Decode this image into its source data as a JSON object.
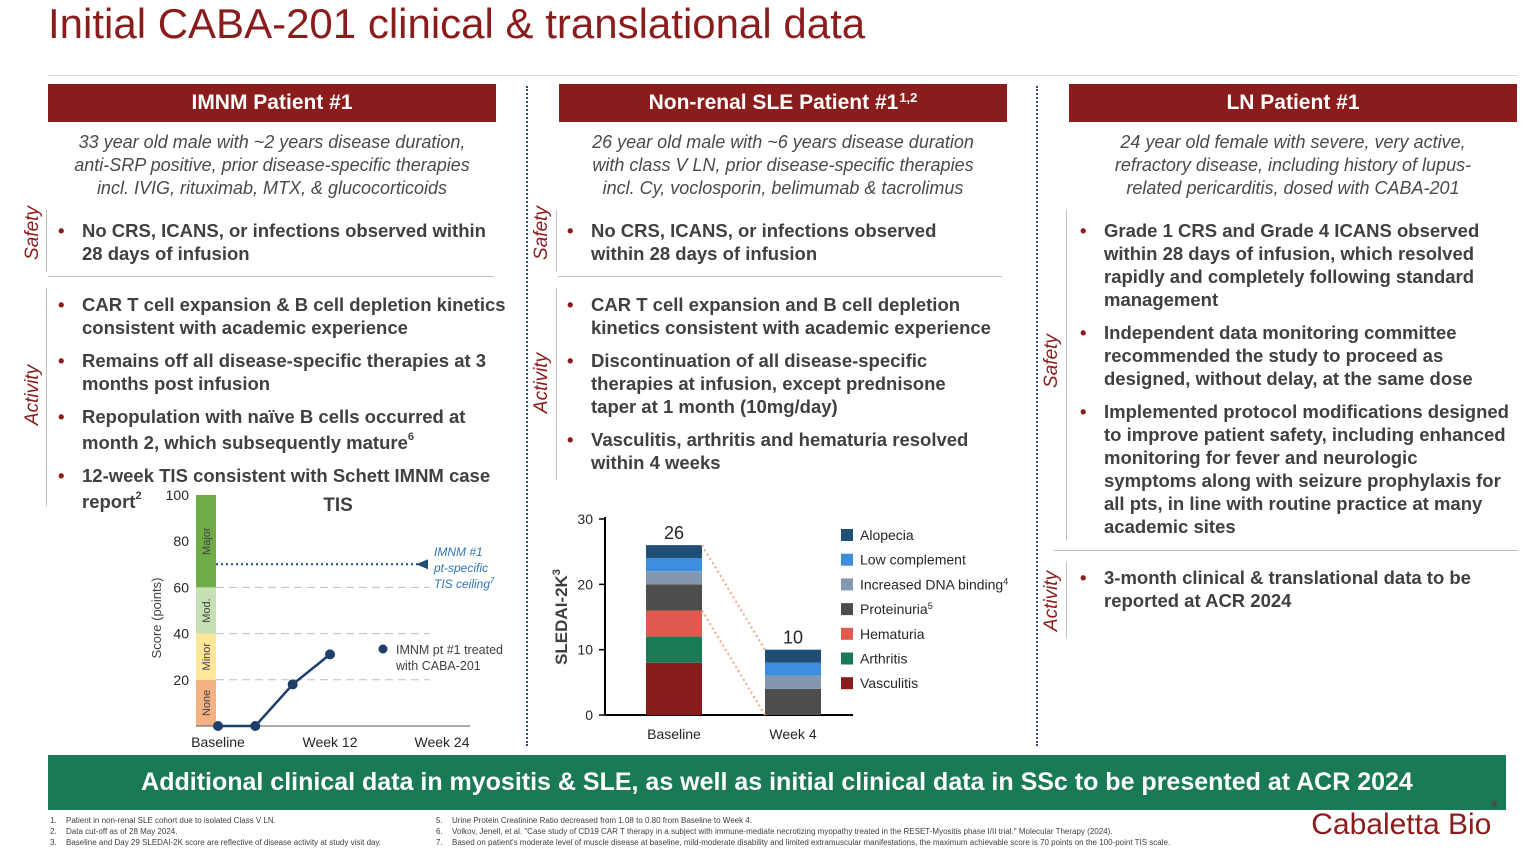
{
  "title": "Initial CABA-201 clinical & translational data",
  "columns": [
    {
      "header": "IMNM Patient #1",
      "description": [
        "33 year old male with ~2 years disease duration,",
        "anti-SRP positive, prior disease-specific therapies",
        "incl. IVIG, rituximab, MTX, & glucocorticoids"
      ],
      "safety_label": "Safety",
      "safety": [
        "No CRS, ICANS, or infections observed within 28 days of infusion"
      ],
      "activity_label": "Activity",
      "activity": [
        "CAR T cell expansion & B cell depletion kinetics consistent with academic experience",
        "Remains off all disease-specific therapies at 3 months post infusion",
        "Repopulation with naïve B cells occurred at month 2, which subsequently mature",
        "12-week TIS consistent with Schett IMNM case report"
      ],
      "activity_sups": [
        "",
        "",
        "6",
        "2"
      ]
    },
    {
      "header": "Non-renal SLE Patient #1",
      "header_sup": "1,2",
      "description": [
        "26 year old male with ~6 years disease duration",
        "with class V LN, prior disease-specific therapies",
        "incl. Cy, voclosporin, belimumab & tacrolimus"
      ],
      "safety_label": "Safety",
      "safety": [
        "No CRS, ICANS, or infections observed within 28 days of infusion"
      ],
      "activity_label": "Activity",
      "activity": [
        "CAR T cell expansion and B cell depletion kinetics consistent with academic experience",
        "Discontinuation of all disease-specific therapies at infusion, except prednisone taper at 1 month (10mg/day)",
        "Vasculitis, arthritis and hematuria resolved within 4 weeks"
      ]
    },
    {
      "header": "LN Patient #1",
      "description": [
        "24 year old female with severe, very active,",
        "refractory disease, including history of lupus-",
        "related pericarditis, dosed with CABA-201"
      ],
      "safety_label": "Safety",
      "safety": [
        "Grade 1 CRS and Grade 4 ICANS observed within 28 days of infusion, which resolved rapidly and completely following standard management",
        "Independent data monitoring committee recommended the study to proceed as designed, without delay, at the same dose",
        "Implemented protocol modifications designed to improve patient safety, including enhanced monitoring for fever and neurologic symptoms along with seizure prophylaxis for all pts, in line with routine practice at many academic sites"
      ],
      "activity_label": "Activity",
      "activity": [
        "3-month clinical & translational data to be reported at ACR 2024"
      ]
    }
  ],
  "chart_data": [
    {
      "type": "line",
      "title": "TIS",
      "ylabel": "Score (points)",
      "ylim": [
        0,
        100
      ],
      "yticks": [
        "0",
        "20",
        "40",
        "60",
        "80",
        "100"
      ],
      "x_tick_labels": [
        "Baseline",
        "Week 12",
        "Week 24"
      ],
      "x_weeks": [
        0,
        4,
        8,
        12
      ],
      "series": [
        {
          "name": "IMNM pt #1 treated with CABA-201",
          "values": [
            0,
            0,
            18,
            31
          ]
        }
      ],
      "bands": [
        {
          "label": "None",
          "from": 0,
          "to": 20,
          "color": "#f4b183"
        },
        {
          "label": "Minor",
          "from": 20,
          "to": 40,
          "color": "#ffe699"
        },
        {
          "label": "Mod.",
          "from": 40,
          "to": 60,
          "color": "#c5e0b4"
        },
        {
          "label": "Major",
          "from": 60,
          "to": 100,
          "color": "#70ad47"
        }
      ],
      "ceiling": {
        "value": 70,
        "label_lines": [
          "IMNM #1",
          "pt-specific",
          "TIS ceiling"
        ],
        "sup": "7"
      },
      "legend": [
        "IMNM pt #1 treated",
        "with CABA-201"
      ],
      "colors": {
        "line": "#1f3f6b",
        "ceiling": "#1f4e79",
        "ceiling_text": "#2e75b6"
      }
    },
    {
      "type": "bar",
      "stacked": true,
      "ylabel": "SLEDAI-2K",
      "ylabel_sup": "3",
      "ylim": [
        0,
        30
      ],
      "yticks": [
        "0",
        "10",
        "20",
        "30"
      ],
      "categories": [
        "Baseline",
        "Week 4"
      ],
      "totals": [
        "26",
        "10"
      ],
      "series": [
        {
          "name": "Vasculitis",
          "values": [
            8,
            0
          ],
          "color": "#8b1c1c"
        },
        {
          "name": "Arthritis",
          "values": [
            4,
            0
          ],
          "color": "#1a7a56"
        },
        {
          "name": "Hematuria",
          "values": [
            4,
            0
          ],
          "color": "#e05a4f"
        },
        {
          "name": "Proteinuria",
          "sup": "5",
          "values": [
            4,
            4
          ],
          "color": "#4d4d4d"
        },
        {
          "name": "Increased DNA binding",
          "sup": "4",
          "values": [
            2,
            2
          ],
          "color": "#8497b0"
        },
        {
          "name": "Low complement",
          "values": [
            2,
            2
          ],
          "color": "#3c8fdc"
        },
        {
          "name": "Alopecia",
          "values": [
            2,
            2
          ],
          "color": "#1f4e79"
        }
      ]
    }
  ],
  "banner": "Additional clinical data in myositis & SLE, as well as initial clinical data in SSc to be presented at ACR 2024",
  "footnotes_left": [
    {
      "n": "1.",
      "text": "Patient in non-renal SLE cohort due to isolated Class V LN."
    },
    {
      "n": "2.",
      "text": "Data cut-off as of 28 May 2024."
    },
    {
      "n": "3.",
      "text": "Baseline and Day 29 SLEDAI-2K score are reflective of disease activity at study visit day."
    }
  ],
  "footnotes_right": [
    {
      "n": "5.",
      "text": "Urine Protein Creatinine Ratio decreased from 1.08 to 0.80 from Baseline to Week 4."
    },
    {
      "n": "6.",
      "text": "Volkov, Jenell, et al. \"Case study of CD19 CAR T therapy in a subject with immune-mediate necrotizing myopathy treated in the RESET-Myositis phase I/II trial.\" Molecular Therapy (2024)."
    },
    {
      "n": "7.",
      "text": "Based on patient's moderate level of muscle disease at baseline, mild-moderate disability and limited extramuscular manifestations, the maximum achievable score is 70 points on the 100-point TIS scale."
    }
  ],
  "logo": {
    "text": "Cabaletta Bio",
    "mark": "®"
  },
  "colors": {
    "accent": "#8b1c1c",
    "banner": "#1a7a56"
  }
}
